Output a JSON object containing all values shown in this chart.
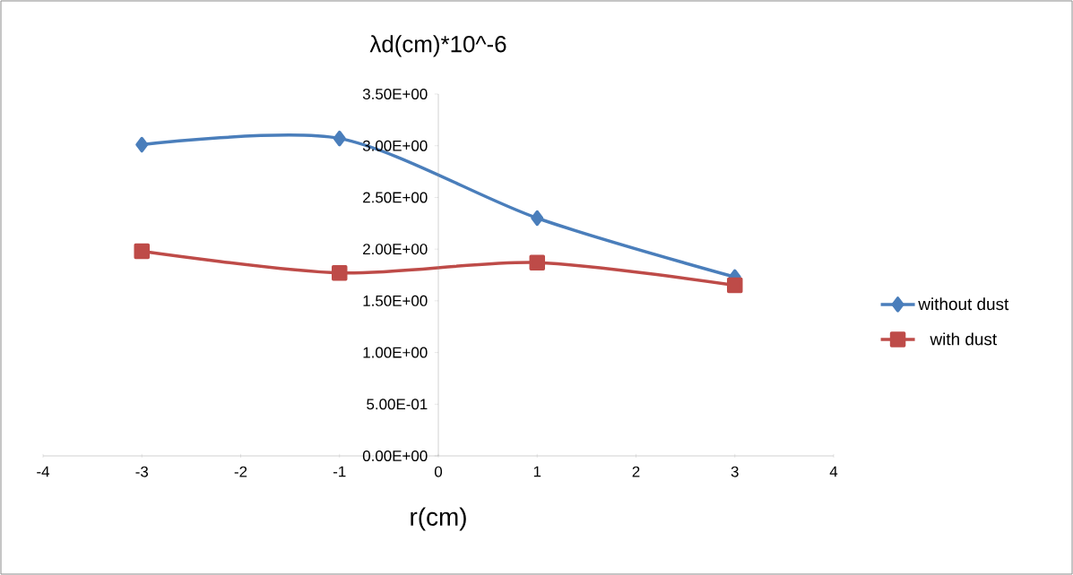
{
  "chart_data": {
    "type": "line",
    "title": "λd(cm)*10^-6",
    "xlabel": "r(cm)",
    "x": [
      -3,
      -1,
      1,
      3
    ],
    "series": [
      {
        "name": "without dust",
        "color": "#4a7ebb",
        "marker": "diamond",
        "values": [
          3.01,
          3.07,
          2.3,
          1.73
        ]
      },
      {
        "name": "with dust",
        "color": "#be4b48",
        "marker": "square",
        "values": [
          1.98,
          1.77,
          1.87,
          1.65
        ]
      }
    ],
    "xlim": [
      -4,
      4
    ],
    "ylim": [
      0,
      3.5
    ],
    "xticks": [
      -4,
      -3,
      -2,
      -1,
      0,
      1,
      2,
      3,
      4
    ],
    "yticks": [
      {
        "value": 0,
        "label": "0.00E+00"
      },
      {
        "value": 0.5,
        "label": "5.00E-01"
      },
      {
        "value": 1,
        "label": "1.00E+00"
      },
      {
        "value": 1.5,
        "label": "1.50E+00"
      },
      {
        "value": 2,
        "label": "2.00E+00"
      },
      {
        "value": 2.5,
        "label": "2.50E+00"
      },
      {
        "value": 3,
        "label": "3.00E+00"
      },
      {
        "value": 3.5,
        "label": "3.50E+00"
      }
    ],
    "legend": "right",
    "grid": false
  }
}
